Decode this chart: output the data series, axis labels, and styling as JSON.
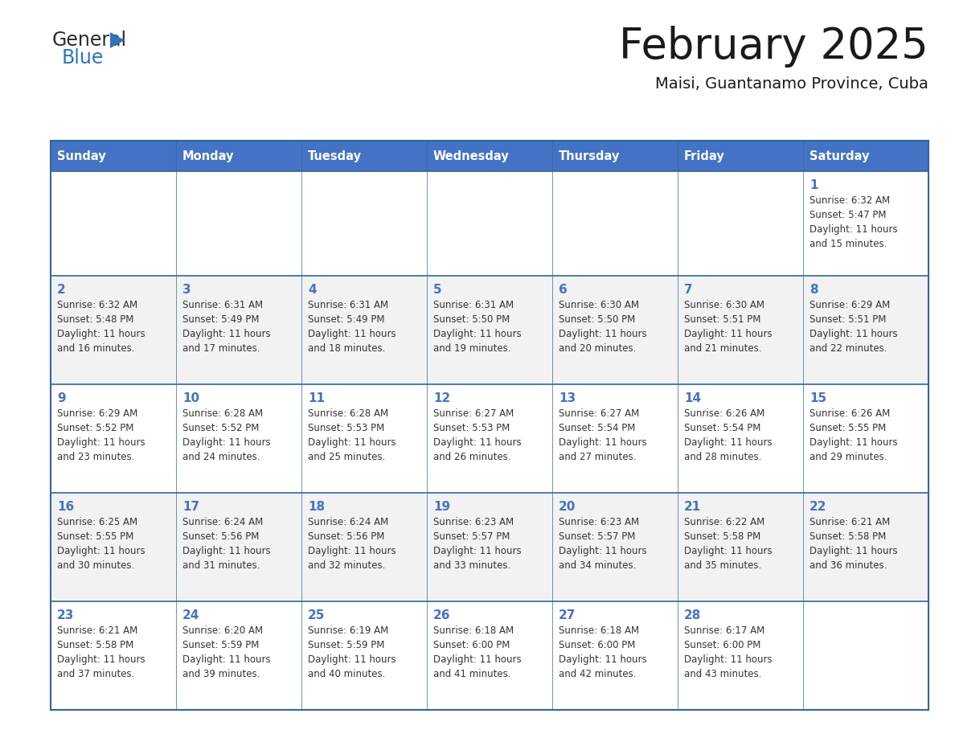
{
  "title": "February 2025",
  "subtitle": "Maisi, Guantanamo Province, Cuba",
  "header_bg": "#4472C4",
  "header_text_color": "#FFFFFF",
  "header_days": [
    "Sunday",
    "Monday",
    "Tuesday",
    "Wednesday",
    "Thursday",
    "Friday",
    "Saturday"
  ],
  "row_bg_odd": "#F2F2F2",
  "row_bg_even": "#FFFFFF",
  "border_color": "#336699",
  "text_color": "#333333",
  "day_num_color": "#4472C4",
  "logo_general_color": "#2B2B2B",
  "logo_blue_color": "#2E75B6",
  "calendar": [
    [
      null,
      null,
      null,
      null,
      null,
      null,
      {
        "day": 1,
        "sunrise": "6:32 AM",
        "sunset": "5:47 PM",
        "daylight_line1": "Daylight: 11 hours",
        "daylight_line2": "and 15 minutes."
      }
    ],
    [
      {
        "day": 2,
        "sunrise": "6:32 AM",
        "sunset": "5:48 PM",
        "daylight_line1": "Daylight: 11 hours",
        "daylight_line2": "and 16 minutes."
      },
      {
        "day": 3,
        "sunrise": "6:31 AM",
        "sunset": "5:49 PM",
        "daylight_line1": "Daylight: 11 hours",
        "daylight_line2": "and 17 minutes."
      },
      {
        "day": 4,
        "sunrise": "6:31 AM",
        "sunset": "5:49 PM",
        "daylight_line1": "Daylight: 11 hours",
        "daylight_line2": "and 18 minutes."
      },
      {
        "day": 5,
        "sunrise": "6:31 AM",
        "sunset": "5:50 PM",
        "daylight_line1": "Daylight: 11 hours",
        "daylight_line2": "and 19 minutes."
      },
      {
        "day": 6,
        "sunrise": "6:30 AM",
        "sunset": "5:50 PM",
        "daylight_line1": "Daylight: 11 hours",
        "daylight_line2": "and 20 minutes."
      },
      {
        "day": 7,
        "sunrise": "6:30 AM",
        "sunset": "5:51 PM",
        "daylight_line1": "Daylight: 11 hours",
        "daylight_line2": "and 21 minutes."
      },
      {
        "day": 8,
        "sunrise": "6:29 AM",
        "sunset": "5:51 PM",
        "daylight_line1": "Daylight: 11 hours",
        "daylight_line2": "and 22 minutes."
      }
    ],
    [
      {
        "day": 9,
        "sunrise": "6:29 AM",
        "sunset": "5:52 PM",
        "daylight_line1": "Daylight: 11 hours",
        "daylight_line2": "and 23 minutes."
      },
      {
        "day": 10,
        "sunrise": "6:28 AM",
        "sunset": "5:52 PM",
        "daylight_line1": "Daylight: 11 hours",
        "daylight_line2": "and 24 minutes."
      },
      {
        "day": 11,
        "sunrise": "6:28 AM",
        "sunset": "5:53 PM",
        "daylight_line1": "Daylight: 11 hours",
        "daylight_line2": "and 25 minutes."
      },
      {
        "day": 12,
        "sunrise": "6:27 AM",
        "sunset": "5:53 PM",
        "daylight_line1": "Daylight: 11 hours",
        "daylight_line2": "and 26 minutes."
      },
      {
        "day": 13,
        "sunrise": "6:27 AM",
        "sunset": "5:54 PM",
        "daylight_line1": "Daylight: 11 hours",
        "daylight_line2": "and 27 minutes."
      },
      {
        "day": 14,
        "sunrise": "6:26 AM",
        "sunset": "5:54 PM",
        "daylight_line1": "Daylight: 11 hours",
        "daylight_line2": "and 28 minutes."
      },
      {
        "day": 15,
        "sunrise": "6:26 AM",
        "sunset": "5:55 PM",
        "daylight_line1": "Daylight: 11 hours",
        "daylight_line2": "and 29 minutes."
      }
    ],
    [
      {
        "day": 16,
        "sunrise": "6:25 AM",
        "sunset": "5:55 PM",
        "daylight_line1": "Daylight: 11 hours",
        "daylight_line2": "and 30 minutes."
      },
      {
        "day": 17,
        "sunrise": "6:24 AM",
        "sunset": "5:56 PM",
        "daylight_line1": "Daylight: 11 hours",
        "daylight_line2": "and 31 minutes."
      },
      {
        "day": 18,
        "sunrise": "6:24 AM",
        "sunset": "5:56 PM",
        "daylight_line1": "Daylight: 11 hours",
        "daylight_line2": "and 32 minutes."
      },
      {
        "day": 19,
        "sunrise": "6:23 AM",
        "sunset": "5:57 PM",
        "daylight_line1": "Daylight: 11 hours",
        "daylight_line2": "and 33 minutes."
      },
      {
        "day": 20,
        "sunrise": "6:23 AM",
        "sunset": "5:57 PM",
        "daylight_line1": "Daylight: 11 hours",
        "daylight_line2": "and 34 minutes."
      },
      {
        "day": 21,
        "sunrise": "6:22 AM",
        "sunset": "5:58 PM",
        "daylight_line1": "Daylight: 11 hours",
        "daylight_line2": "and 35 minutes."
      },
      {
        "day": 22,
        "sunrise": "6:21 AM",
        "sunset": "5:58 PM",
        "daylight_line1": "Daylight: 11 hours",
        "daylight_line2": "and 36 minutes."
      }
    ],
    [
      {
        "day": 23,
        "sunrise": "6:21 AM",
        "sunset": "5:58 PM",
        "daylight_line1": "Daylight: 11 hours",
        "daylight_line2": "and 37 minutes."
      },
      {
        "day": 24,
        "sunrise": "6:20 AM",
        "sunset": "5:59 PM",
        "daylight_line1": "Daylight: 11 hours",
        "daylight_line2": "and 39 minutes."
      },
      {
        "day": 25,
        "sunrise": "6:19 AM",
        "sunset": "5:59 PM",
        "daylight_line1": "Daylight: 11 hours",
        "daylight_line2": "and 40 minutes."
      },
      {
        "day": 26,
        "sunrise": "6:18 AM",
        "sunset": "6:00 PM",
        "daylight_line1": "Daylight: 11 hours",
        "daylight_line2": "and 41 minutes."
      },
      {
        "day": 27,
        "sunrise": "6:18 AM",
        "sunset": "6:00 PM",
        "daylight_line1": "Daylight: 11 hours",
        "daylight_line2": "and 42 minutes."
      },
      {
        "day": 28,
        "sunrise": "6:17 AM",
        "sunset": "6:00 PM",
        "daylight_line1": "Daylight: 11 hours",
        "daylight_line2": "and 43 minutes."
      },
      null
    ]
  ]
}
